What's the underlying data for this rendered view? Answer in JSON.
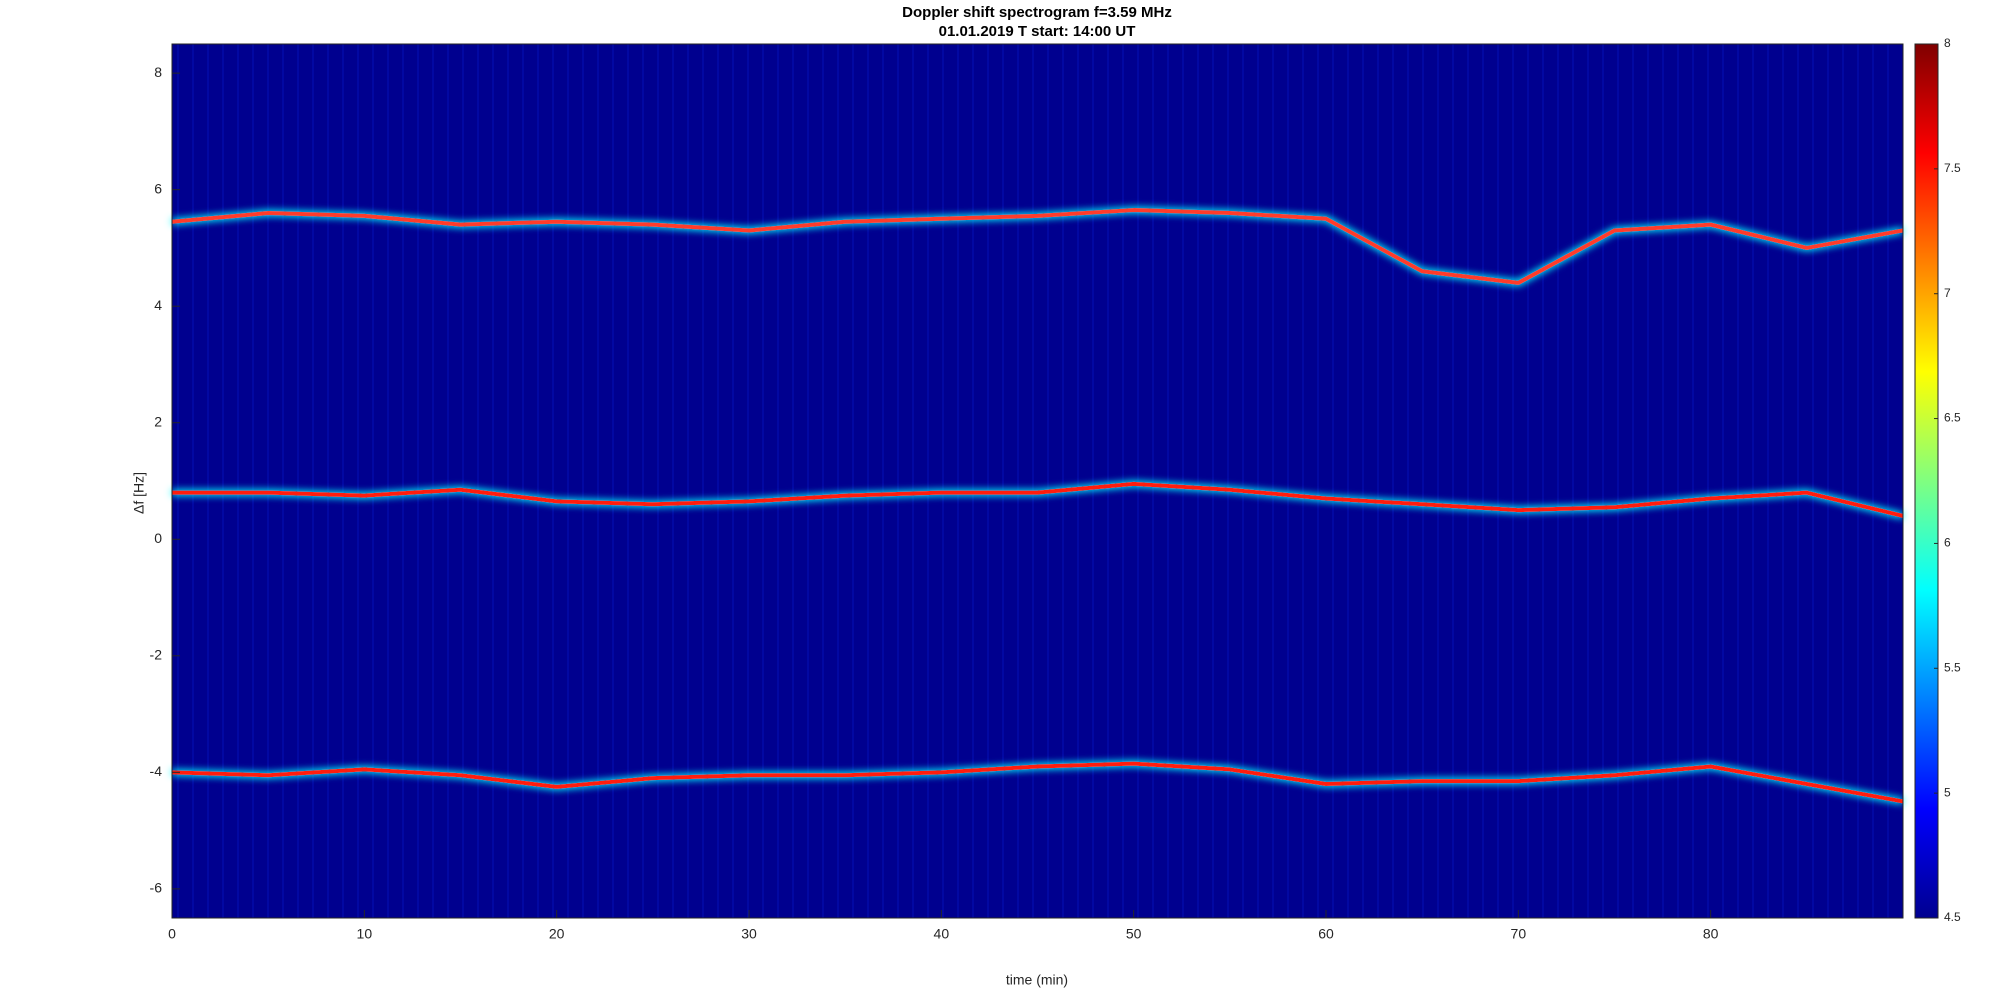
{
  "chart_data": {
    "type": "line",
    "title": "Doppler shift spectrogram f=3.59 MHz",
    "subtitle": "01.01.2019   T start: 14:00 UT",
    "x_label": "time (min)",
    "y_label": "Δf [Hz]",
    "xlim": [
      0,
      90
    ],
    "xticks": [
      0,
      10,
      20,
      30,
      40,
      50,
      60,
      70,
      80
    ],
    "ylim": [
      -6.5,
      8.5
    ],
    "yticks": [
      -6,
      -4,
      -2,
      0,
      2,
      4,
      6,
      8
    ],
    "background": "#00008f",
    "x": [
      0,
      5,
      10,
      15,
      20,
      25,
      30,
      35,
      40,
      45,
      50,
      55,
      60,
      65,
      70,
      75,
      80,
      85,
      90
    ],
    "series": [
      {
        "color": "#ff3a2a",
        "values": [
          5.45,
          5.6,
          5.55,
          5.4,
          5.45,
          5.4,
          5.3,
          5.45,
          5.5,
          5.55,
          5.65,
          5.6,
          5.5,
          4.6,
          4.4,
          5.3,
          5.4,
          5.0,
          5.3
        ]
      },
      {
        "color": "#ff1a10",
        "values": [
          0.8,
          0.8,
          0.75,
          0.85,
          0.65,
          0.6,
          0.65,
          0.75,
          0.8,
          0.8,
          0.95,
          0.85,
          0.7,
          0.6,
          0.5,
          0.55,
          0.7,
          0.8,
          0.4
        ]
      },
      {
        "color": "#ff1a10",
        "values": [
          -4.0,
          -4.05,
          -3.95,
          -4.05,
          -4.25,
          -4.1,
          -4.05,
          -4.05,
          -4.0,
          -3.9,
          -3.85,
          -3.95,
          -4.2,
          -4.15,
          -4.15,
          -4.05,
          -3.9,
          -4.2,
          -4.5
        ]
      }
    ],
    "colorbar": {
      "lim": [
        4.5,
        8
      ],
      "ticks": [
        4.5,
        5,
        5.5,
        6,
        6.5,
        7,
        7.5,
        8
      ],
      "colormap": [
        "#00008f",
        "#0000ff",
        "#0080ff",
        "#00ffff",
        "#80ff80",
        "#ffff00",
        "#ff8000",
        "#ff0000",
        "#800000"
      ]
    }
  }
}
